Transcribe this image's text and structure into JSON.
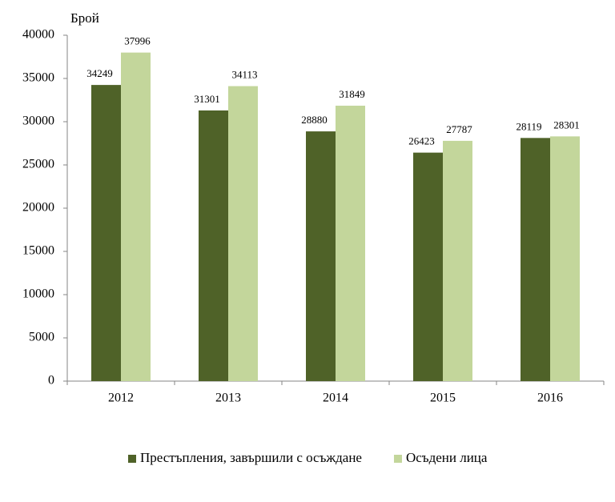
{
  "chart_data": {
    "type": "bar",
    "y_label": "Брой",
    "categories": [
      "2012",
      "2013",
      "2014",
      "2015",
      "2016"
    ],
    "series": [
      {
        "name": "Престъпления, завършили с осъждане",
        "color": "#4f6228",
        "values": [
          34249,
          31301,
          28880,
          26423,
          28119
        ]
      },
      {
        "name": "Осъдени лица",
        "color": "#c3d69b",
        "values": [
          37996,
          34113,
          31849,
          27787,
          28301
        ]
      }
    ],
    "ylim": [
      0,
      40000
    ],
    "yticks": [
      0,
      5000,
      10000,
      15000,
      20000,
      25000,
      30000,
      35000,
      40000
    ],
    "legend": "bottom"
  }
}
